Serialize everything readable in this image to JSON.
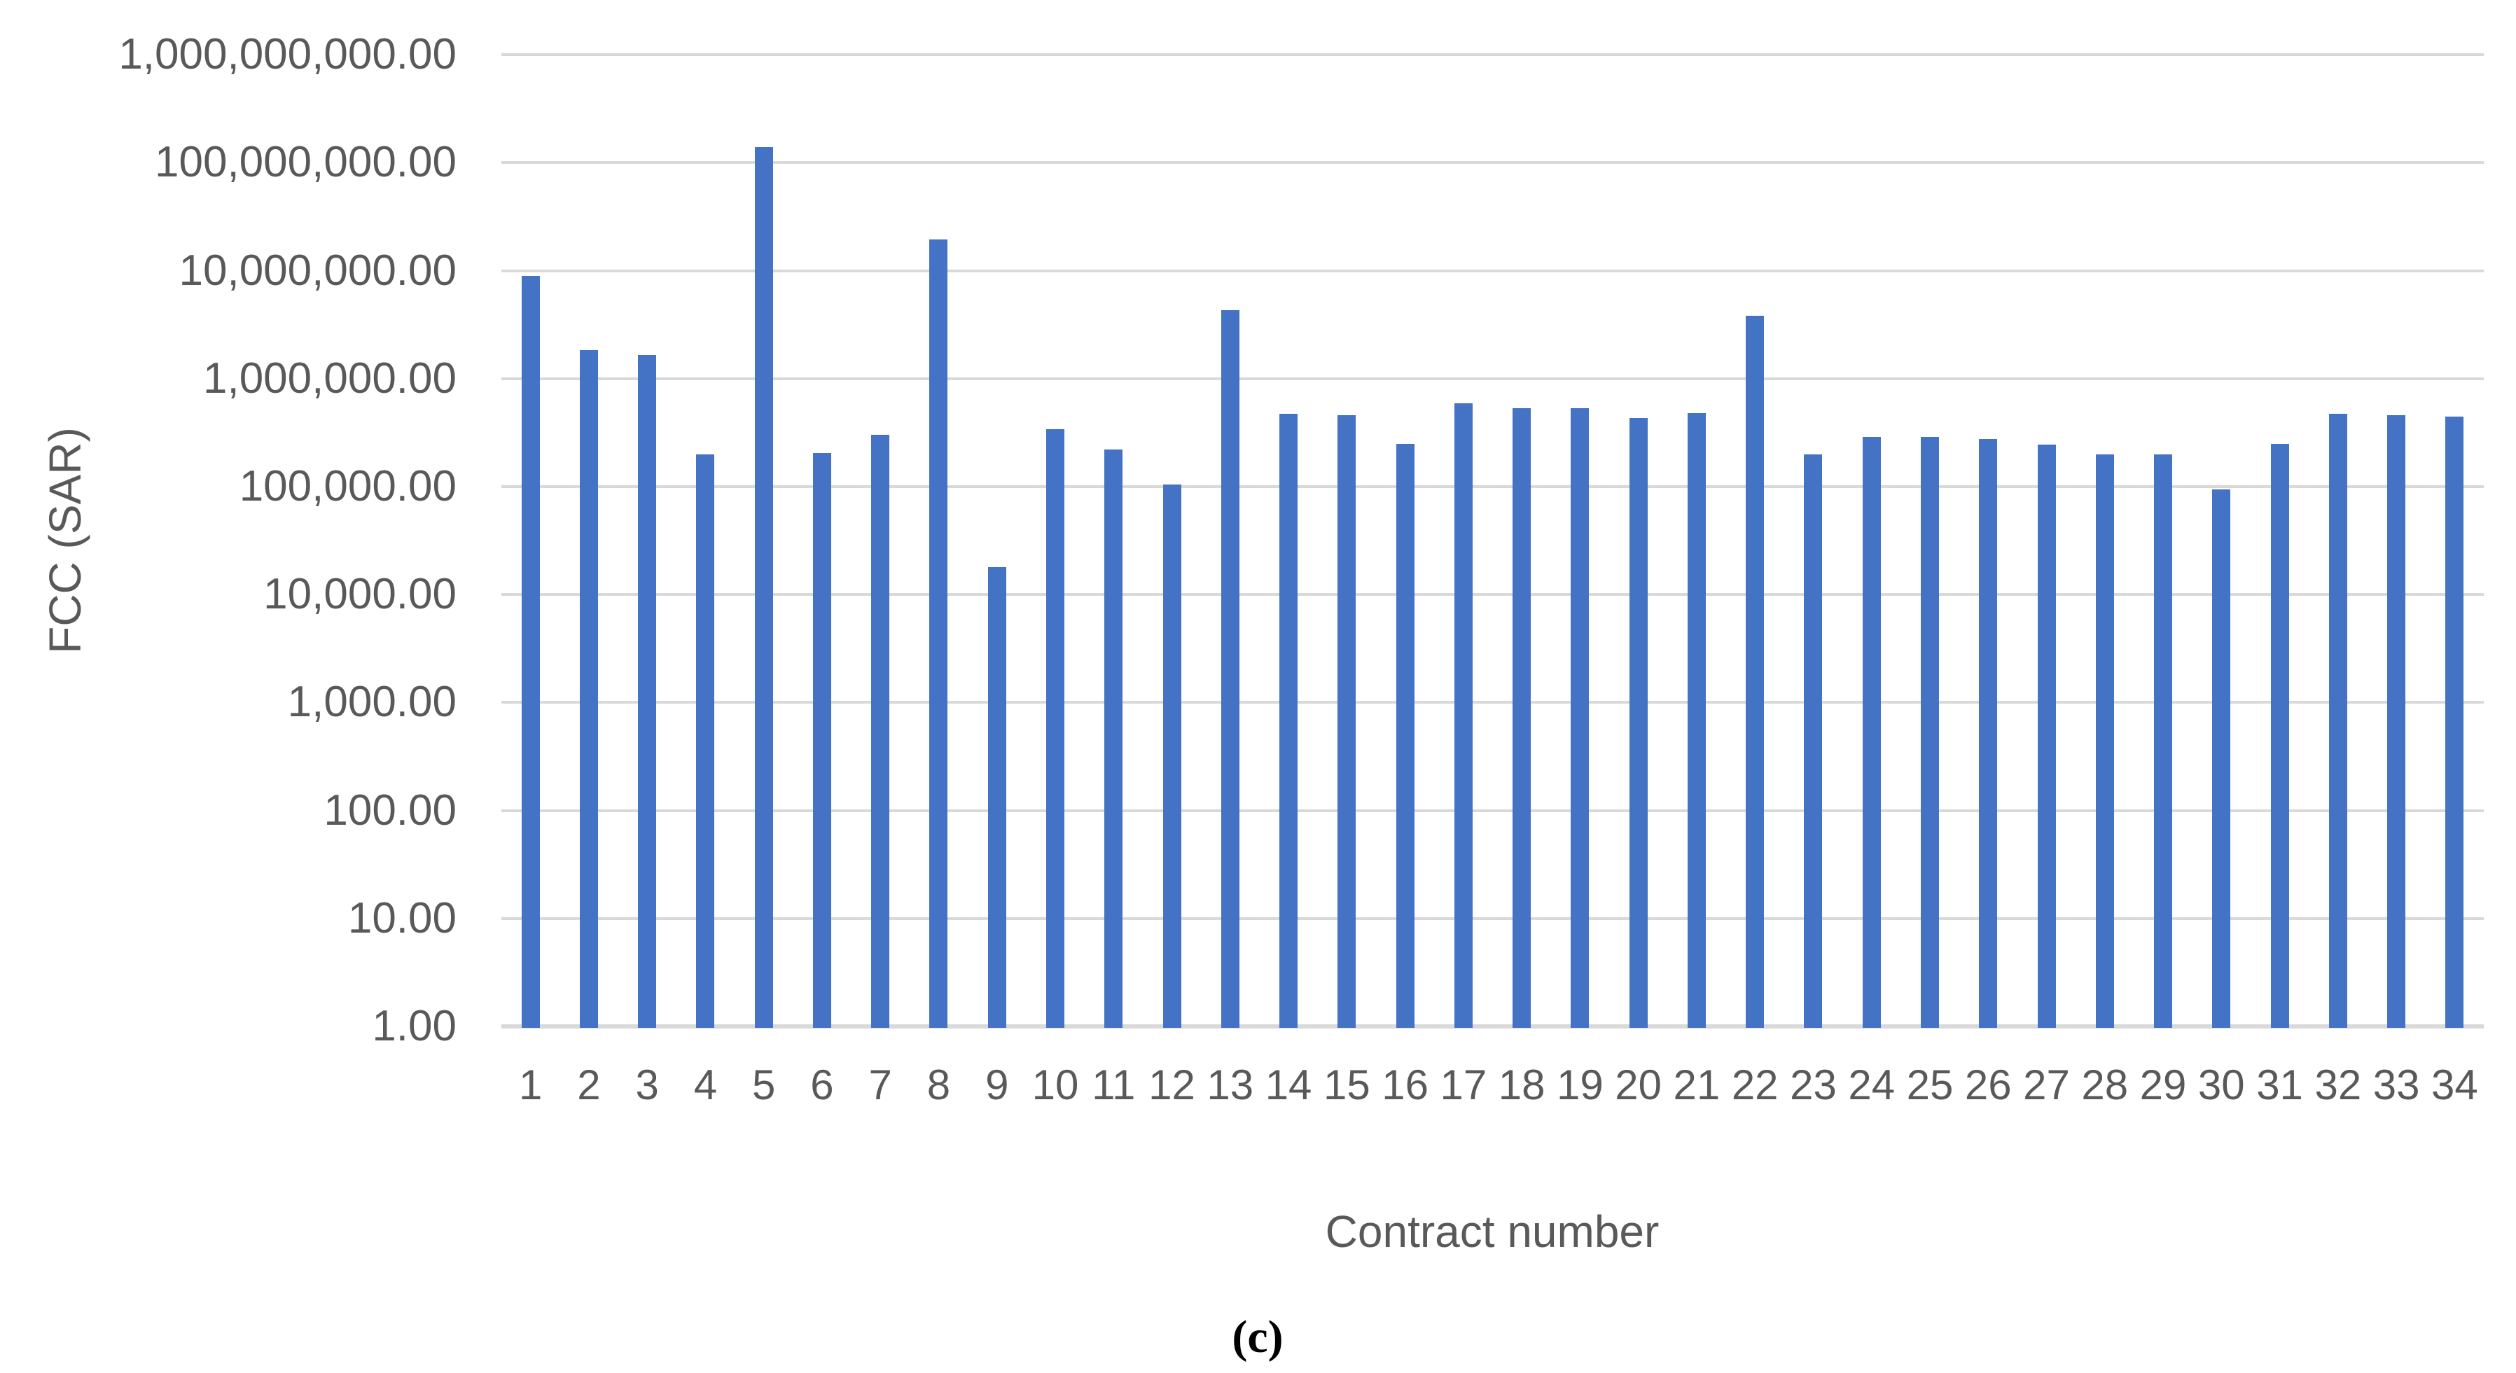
{
  "figure": {
    "caption": "(c)"
  },
  "chart_data": {
    "type": "bar",
    "title": "",
    "xlabel": "Contract number",
    "ylabel": "FCC (SAR)",
    "y_scale": "log10",
    "ylim": [
      1,
      1000000000
    ],
    "grid": true,
    "legend": false,
    "y_tick_labels": [
      "1,000,000,000.00",
      "100,000,000.00",
      "10,000,000.00",
      "1,000,000.00",
      "100,000.00",
      "10,000.00",
      "1,000.00",
      "100.00",
      "10.00",
      "1.00"
    ],
    "categories": [
      "1",
      "2",
      "3",
      "4",
      "5",
      "6",
      "7",
      "8",
      "9",
      "10",
      "11",
      "12",
      "13",
      "14",
      "15",
      "16",
      "17",
      "18",
      "19",
      "20",
      "21",
      "22",
      "23",
      "24",
      "25",
      "26",
      "27",
      "28",
      "29",
      "30",
      "31",
      "32",
      "33",
      "34"
    ],
    "values": [
      8900000,
      1850000,
      1650000,
      200000,
      140000000,
      205000,
      300000,
      19500000,
      18000,
      340000,
      220000,
      105000,
      4300000,
      470000,
      460000,
      250000,
      590000,
      530000,
      530000,
      435000,
      480000,
      3800000,
      200000,
      290000,
      290000,
      275000,
      245000,
      200000,
      200000,
      94000,
      250000,
      470000,
      460000,
      445000
    ],
    "bar_color": "#4472C4",
    "gridline_color": "#D9D9D9",
    "text_color": "#595959"
  }
}
